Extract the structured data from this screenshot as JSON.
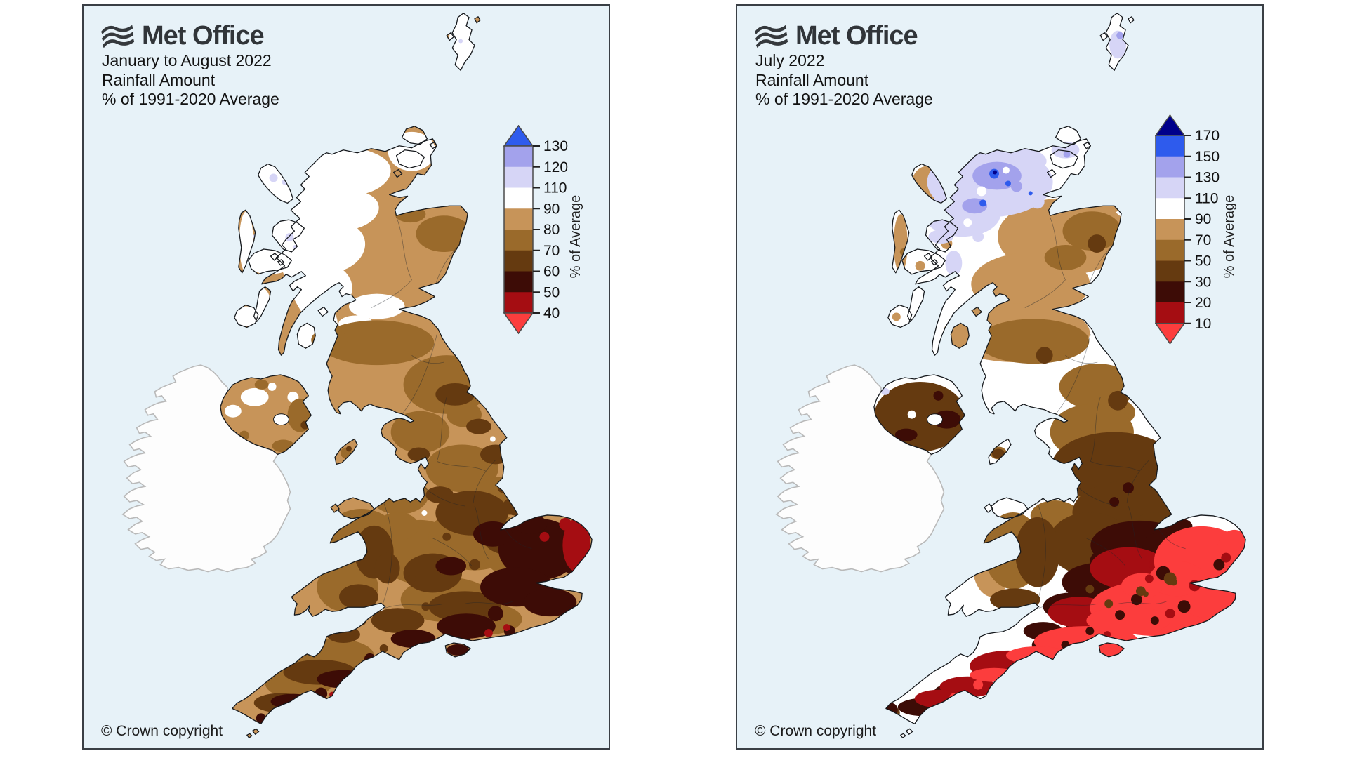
{
  "palette": {
    "page_bg": "#ffffff",
    "sea": "#e7f2f8",
    "coast": "#15181c",
    "ireland_fill": "#fdfdfd",
    "ireland_stroke": "#b9b9b9",
    "navy": "#00008b",
    "royal_blue": "#2e5bed",
    "periwinkle": "#a3a2ec",
    "lavender": "#d6d5f6",
    "white": "#ffffff",
    "tan": "#c79459",
    "mid_brown": "#9a6a2b",
    "dark_brown": "#653a10",
    "maroon": "#3d0c06",
    "dark_red": "#a50d12",
    "bright_red": "#fc3d3d"
  },
  "panels": [
    {
      "logo": "Met Office",
      "title_lines": [
        "January to August 2022",
        "Rainfall Amount",
        "% of 1991-2020 Average"
      ],
      "copyright": "© Crown copyright",
      "colorbar": {
        "axis_label": "% of Average",
        "arrow_top": "#2e5bed",
        "arrow_bottom": "#fc3d3d",
        "segments": [
          "#a3a2ec",
          "#d6d5f6",
          "#ffffff",
          "#c79459",
          "#9a6a2b",
          "#653a10",
          "#3d0c06",
          "#a50d12"
        ],
        "tick_labels": [
          "130",
          "120",
          "110",
          "90",
          "80",
          "70",
          "60",
          "50",
          "40"
        ]
      }
    },
    {
      "logo": "Met Office",
      "title_lines": [
        "July 2022",
        "Rainfall Amount",
        "% of 1991-2020 Average"
      ],
      "copyright": "© Crown copyright",
      "colorbar": {
        "axis_label": "% of Average",
        "arrow_top": "#00008b",
        "arrow_bottom": "#fc3d3d",
        "segments": [
          "#2e5bed",
          "#a3a2ec",
          "#d6d5f6",
          "#ffffff",
          "#c79459",
          "#9a6a2b",
          "#653a10",
          "#3d0c06",
          "#a50d12"
        ],
        "tick_labels": [
          "170",
          "150",
          "130",
          "110",
          "90",
          "70",
          "50",
          "30",
          "20",
          "10"
        ]
      }
    }
  ]
}
